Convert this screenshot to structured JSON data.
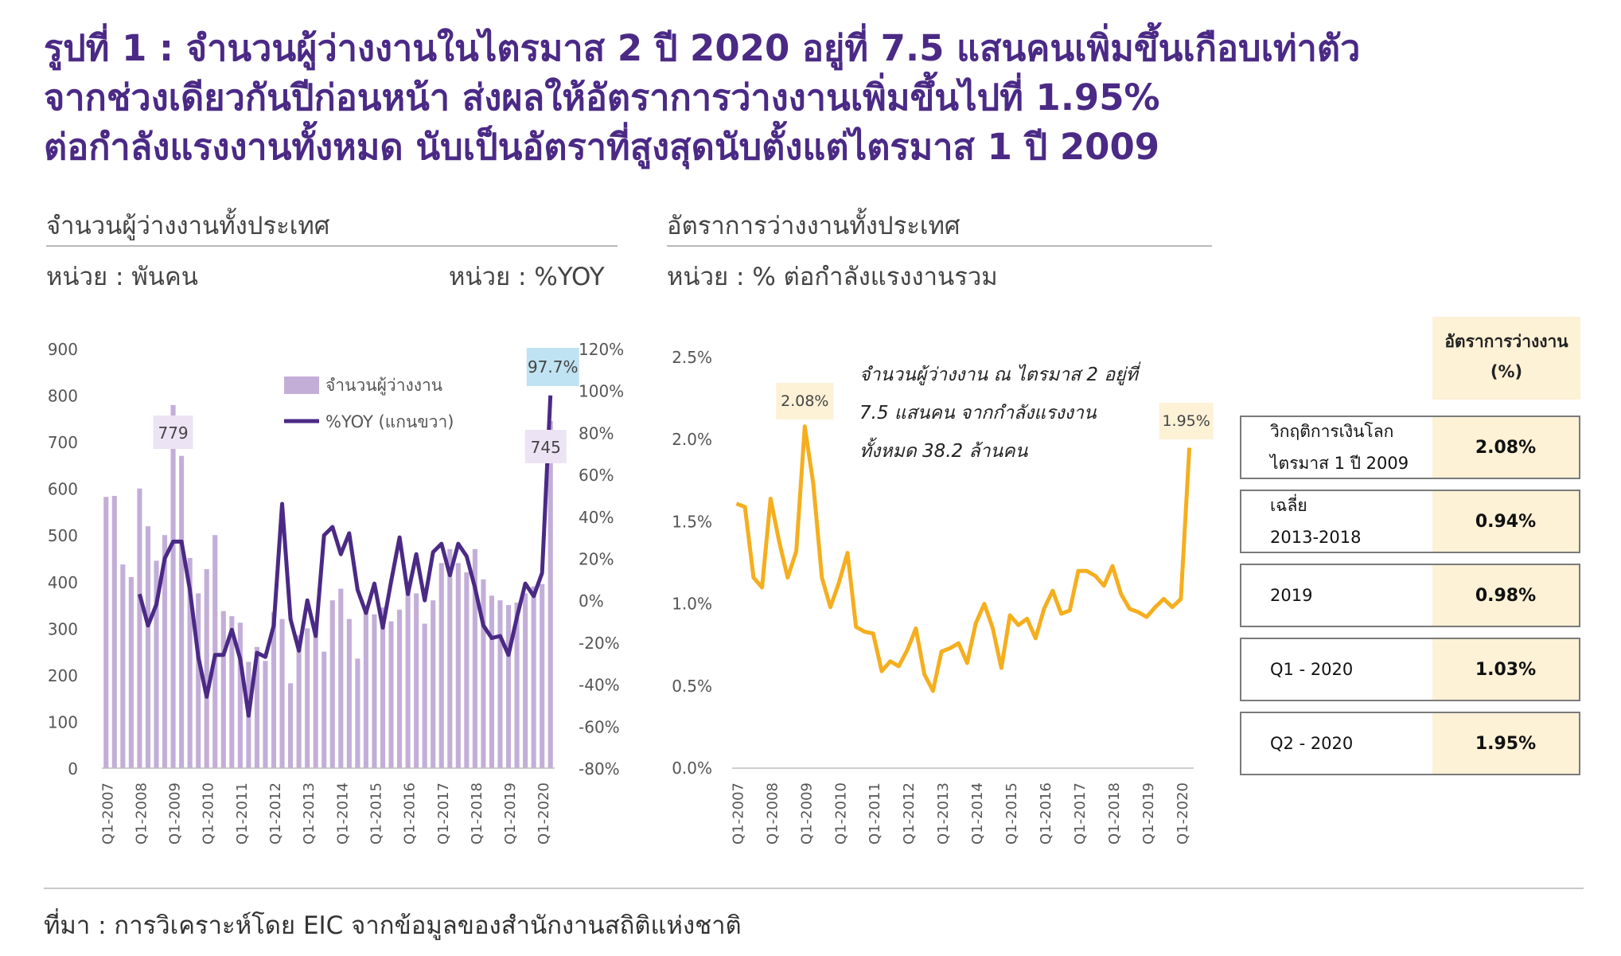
{
  "title": {
    "line1": "รูปที่ 1 : จำนวนผู้ว่างงานในไตรมาส 2 ปี 2020 อยู่ที่ 7.5 แสนคนเพิ่มขึ้นเกือบเท่าตัว",
    "line2": "จากช่วงเดียวกันปีก่อนหน้า ส่งผลให้อัตราการว่างงานเพิ่มขึ้นไปที่ 1.95%",
    "line3": "ต่อกำลังแรงงานทั้งหมด นับเป็นอัตราที่สูงสุดนับตั้งแต่ไตรมาส 1 ปี 2009"
  },
  "left_panel": {
    "heading": "จำนวนผู้ว่างงานทั้งประเทศ",
    "unit_left": "หน่วย : พันคน",
    "unit_right": "หน่วย : %YOY"
  },
  "right_panel": {
    "heading": "อัตราการว่างงานทั้งประเทศ",
    "unit": "หน่วย : % ต่อกำลังแรงงานรวม",
    "annotation": [
      "จำนวนผู้ว่างงาน ณ ไตรมาส 2 อยู่ที่",
      "7.5 แสนคน จากกำลังแรงงาน",
      "ทั้งหมด 38.2 ล้านคน"
    ]
  },
  "table": {
    "header_line1": "อัตราการว่างงาน",
    "header_line2": "(%)",
    "rows": [
      {
        "label1": "วิกฤติการเงินโลก",
        "label2": "ไตรมาส 1 ปี 2009",
        "value": "2.08%"
      },
      {
        "label1": "เฉลี่ย",
        "label2": "2013-2018",
        "value": "0.94%"
      },
      {
        "label1": "2019",
        "label2": "",
        "value": "0.98%"
      },
      {
        "label1": "Q1 - 2020",
        "label2": "",
        "value": "1.03%"
      },
      {
        "label1": "Q2 - 2020",
        "label2": "",
        "value": "1.95%"
      }
    ]
  },
  "source": "ที่มา : การวิเคราะห์โดย EIC จากข้อมูลของสำนักงานสถิติแห่งชาติ",
  "colors": {
    "title": "#4b2a86",
    "bar": "#c3aed8",
    "line_purple": "#4b2a86",
    "line_orange": "#f5ae1e",
    "highlight_fill": "#fdf1d6",
    "label_blue": "#bfe3f3",
    "label_purple": "#ece3f4"
  },
  "chart_data": [
    {
      "type": "bar",
      "categories": [
        "Q1-2007",
        "Q2-2007",
        "Q3-2007",
        "Q4-2007",
        "Q1-2008",
        "Q2-2008",
        "Q3-2008",
        "Q4-2008",
        "Q1-2009",
        "Q2-2009",
        "Q3-2009",
        "Q4-2009",
        "Q1-2010",
        "Q2-2010",
        "Q3-2010",
        "Q4-2010",
        "Q1-2011",
        "Q2-2011",
        "Q3-2011",
        "Q4-2011",
        "Q1-2012",
        "Q2-2012",
        "Q3-2012",
        "Q4-2012",
        "Q1-2013",
        "Q2-2013",
        "Q3-2013",
        "Q4-2013",
        "Q1-2014",
        "Q2-2014",
        "Q3-2014",
        "Q4-2014",
        "Q1-2015",
        "Q2-2015",
        "Q3-2015",
        "Q4-2015",
        "Q1-2016",
        "Q2-2016",
        "Q3-2016",
        "Q4-2016",
        "Q1-2017",
        "Q2-2017",
        "Q3-2017",
        "Q4-2017",
        "Q1-2018",
        "Q2-2018",
        "Q3-2018",
        "Q4-2018",
        "Q1-2019",
        "Q2-2019",
        "Q3-2019",
        "Q4-2019",
        "Q1-2020",
        "Q2-2020"
      ],
      "x_tick_labels": [
        "Q1-2007",
        "Q1-2008",
        "Q1-2009",
        "Q1-2010",
        "Q1-2011",
        "Q1-2012",
        "Q1-2013",
        "Q1-2014",
        "Q1-2015",
        "Q1-2016",
        "Q1-2017",
        "Q1-2018",
        "Q1-2019",
        "Q1-2020"
      ],
      "series": [
        {
          "name": "จำนวนผู้ว่างงาน",
          "axis": "left",
          "values": [
            582,
            584,
            437,
            410,
            600,
            519,
            445,
            500,
            779,
            670,
            451,
            375,
            427,
            500,
            337,
            326,
            312,
            228,
            260,
            230,
            335,
            320,
            182,
            285,
            300,
            295,
            250,
            360,
            385,
            320,
            235,
            340,
            330,
            345,
            315,
            340,
            380,
            375,
            310,
            360,
            440,
            470,
            440,
            420,
            470,
            405,
            370,
            360,
            350,
            355,
            375,
            390,
            395,
            745
          ]
        },
        {
          "name": "%YOY (แกนขวา)",
          "axis": "right",
          "type": "line",
          "values": [
            null,
            null,
            null,
            null,
            3,
            -12,
            -2,
            20,
            28,
            28,
            5,
            -27,
            -46,
            -26,
            -26,
            -14,
            -28,
            -55,
            -25,
            -27,
            -12,
            46,
            -9,
            -24,
            0,
            -17,
            31,
            35,
            22,
            32,
            5,
            -6,
            8,
            -13,
            9,
            30,
            3,
            22,
            0,
            23,
            27,
            12,
            27,
            21,
            6,
            -12,
            -18,
            -17,
            -26,
            -8,
            8,
            2,
            13,
            97.7
          ]
        }
      ],
      "data_labels": [
        {
          "category": "Q1-2009",
          "text": "779"
        },
        {
          "category": "Q2-2020",
          "text": "745"
        },
        {
          "category": "Q2-2020",
          "text": "97.7%",
          "series": "%YOY (แกนขวา)"
        }
      ],
      "y_left": {
        "ticks": [
          "0",
          "100",
          "200",
          "300",
          "400",
          "500",
          "600",
          "700",
          "800",
          "900"
        ],
        "range": [
          0,
          900
        ]
      },
      "y_right": {
        "ticks": [
          "-80%",
          "-60%",
          "-40%",
          "-20%",
          "0%",
          "20%",
          "40%",
          "60%",
          "80%",
          "100%",
          "120%"
        ],
        "range": [
          -80,
          120
        ]
      },
      "legend_position": "top-center",
      "grid": false
    },
    {
      "type": "line",
      "categories": [
        "Q1-2007",
        "Q2-2007",
        "Q3-2007",
        "Q4-2007",
        "Q1-2008",
        "Q2-2008",
        "Q3-2008",
        "Q4-2008",
        "Q1-2009",
        "Q2-2009",
        "Q3-2009",
        "Q4-2009",
        "Q1-2010",
        "Q2-2010",
        "Q3-2010",
        "Q4-2010",
        "Q1-2011",
        "Q2-2011",
        "Q3-2011",
        "Q4-2011",
        "Q1-2012",
        "Q2-2012",
        "Q3-2012",
        "Q4-2012",
        "Q1-2013",
        "Q2-2013",
        "Q3-2013",
        "Q4-2013",
        "Q1-2014",
        "Q2-2014",
        "Q3-2014",
        "Q4-2014",
        "Q1-2015",
        "Q2-2015",
        "Q3-2015",
        "Q4-2015",
        "Q1-2016",
        "Q2-2016",
        "Q3-2016",
        "Q4-2016",
        "Q1-2017",
        "Q2-2017",
        "Q3-2017",
        "Q4-2017",
        "Q1-2018",
        "Q2-2018",
        "Q3-2018",
        "Q4-2018",
        "Q1-2019",
        "Q2-2019",
        "Q3-2019",
        "Q4-2019",
        "Q1-2020",
        "Q2-2020"
      ],
      "x_tick_labels": [
        "Q1-2007",
        "Q1-2008",
        "Q1-2009",
        "Q1-2010",
        "Q1-2011",
        "Q1-2012",
        "Q1-2013",
        "Q1-2014",
        "Q1-2015",
        "Q1-2016",
        "Q1-2017",
        "Q1-2018",
        "Q1-2019",
        "Q1-2020"
      ],
      "series": [
        {
          "name": "",
          "values": [
            1.61,
            1.59,
            1.16,
            1.1,
            1.64,
            1.38,
            1.16,
            1.32,
            2.08,
            1.73,
            1.16,
            0.98,
            1.13,
            1.31,
            0.86,
            0.83,
            0.82,
            0.59,
            0.65,
            0.62,
            0.72,
            0.85,
            0.57,
            0.47,
            0.71,
            0.73,
            0.76,
            0.64,
            0.88,
            1.0,
            0.85,
            0.61,
            0.93,
            0.87,
            0.91,
            0.79,
            0.97,
            1.08,
            0.94,
            0.96,
            1.2,
            1.2,
            1.17,
            1.11,
            1.23,
            1.06,
            0.97,
            0.95,
            0.92,
            0.98,
            1.03,
            0.98,
            1.03,
            1.95
          ]
        }
      ],
      "data_labels": [
        {
          "category": "Q1-2009",
          "text": "2.08%"
        },
        {
          "category": "Q2-2020",
          "text": "1.95%"
        }
      ],
      "y_axis": {
        "ticks": [
          "0.0%",
          "0.5%",
          "1.0%",
          "1.5%",
          "2.0%",
          "2.5%"
        ],
        "range": [
          0,
          2.5
        ]
      },
      "grid": false
    }
  ]
}
